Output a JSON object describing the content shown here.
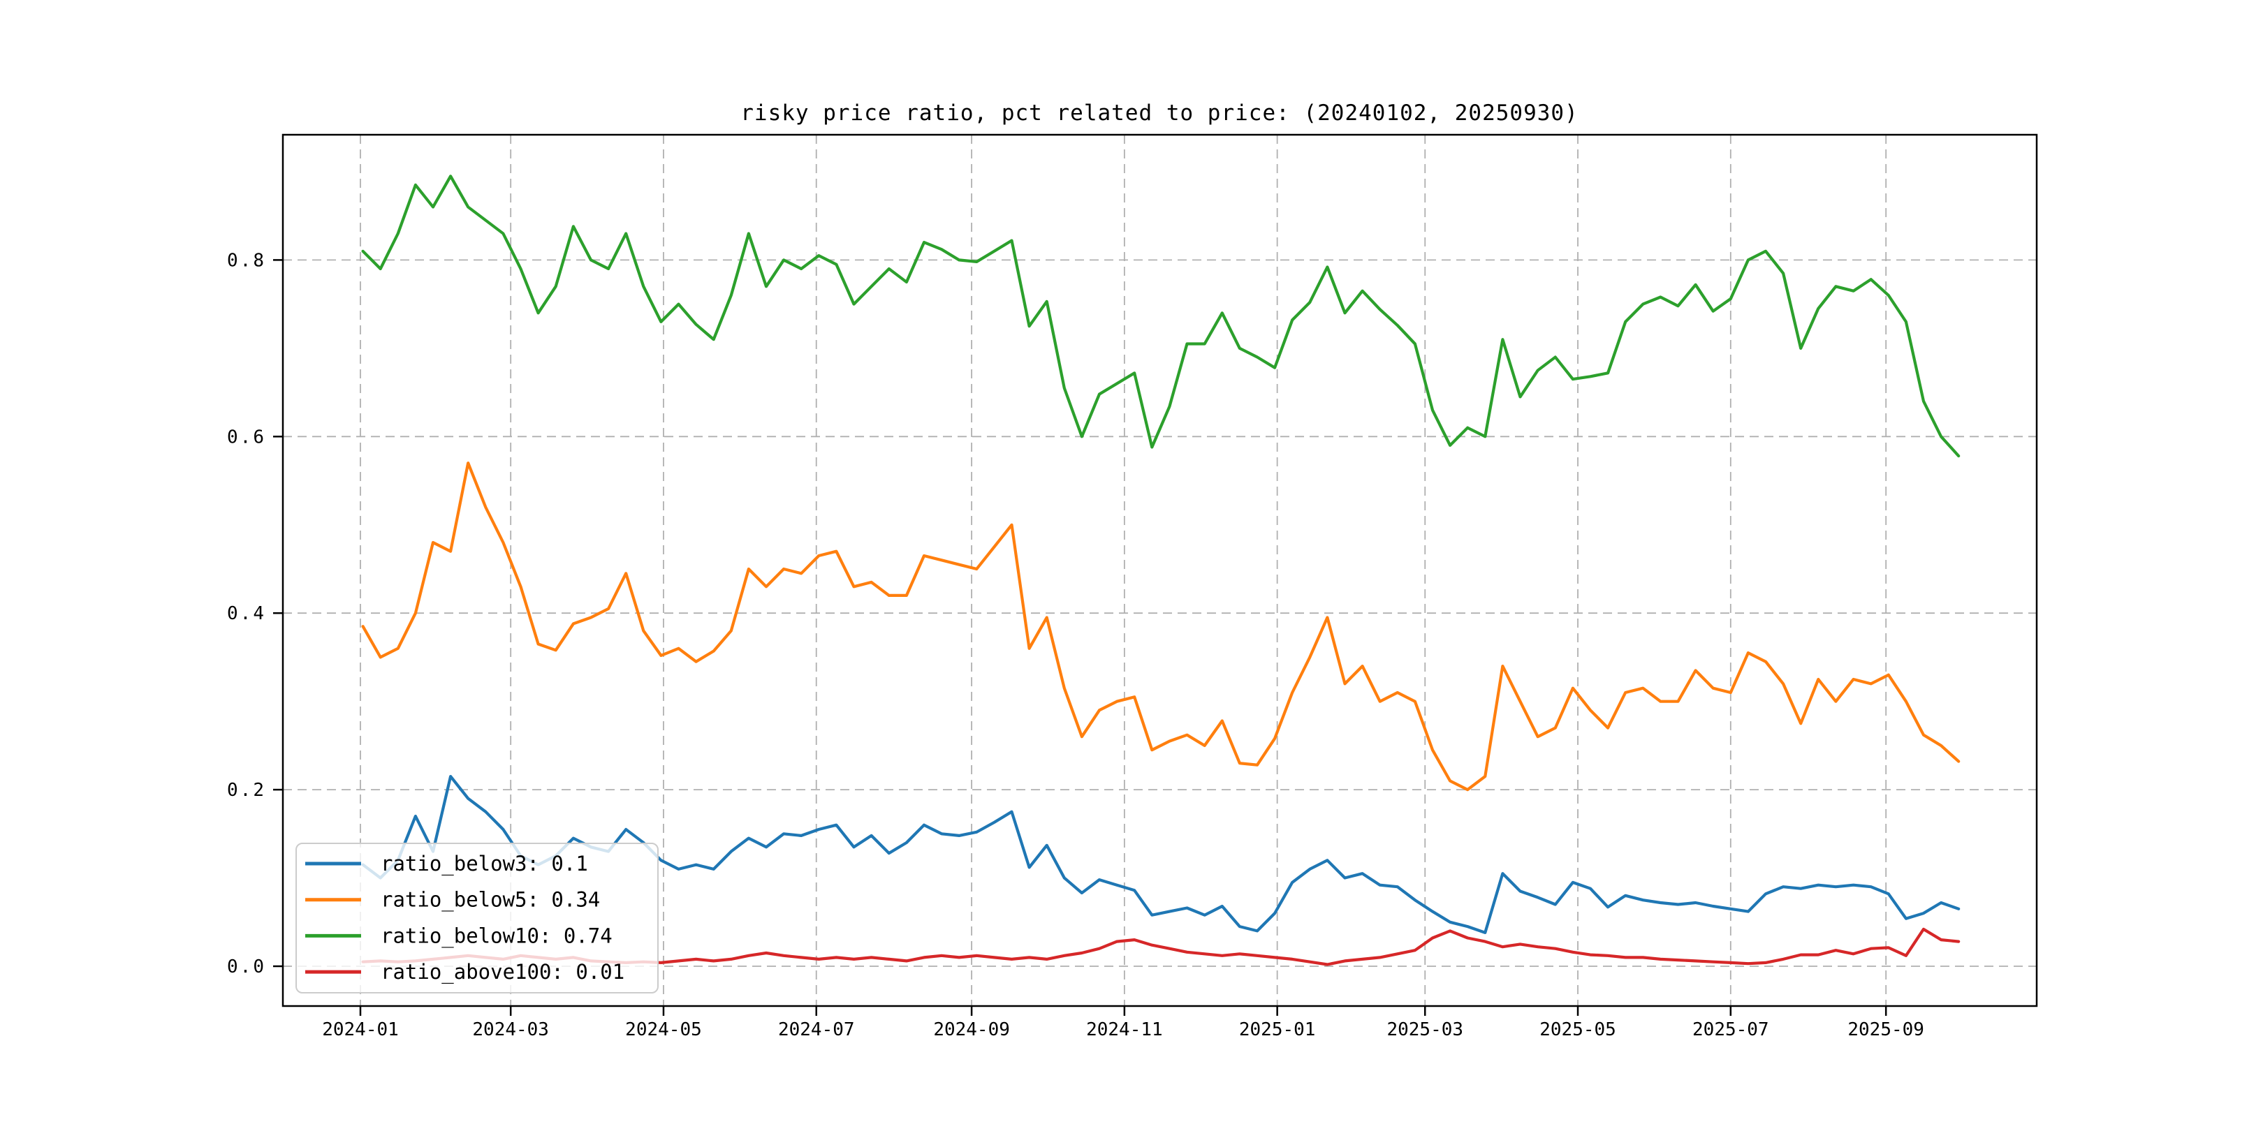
{
  "figure": {
    "background": "#ffffff",
    "grid_color": "#b0b0b0",
    "spine_color": "#000000",
    "legend_border_color": "#cccccc",
    "legend_background": "rgba(255,255,255,0.8)"
  },
  "chart_data": {
    "type": "line",
    "title": "risky price ratio, pct related to price: (20240102, 20250930)",
    "xlabel": "",
    "ylabel": "",
    "x_start_date": "2024-01-02",
    "x_end_date": "2025-09-30",
    "x_step_days": 7,
    "x_tick_labels": [
      "2024-01",
      "2024-03",
      "2024-05",
      "2024-07",
      "2024-09",
      "2024-11",
      "2025-01",
      "2025-03",
      "2025-05",
      "2025-07",
      "2025-09"
    ],
    "y_ticks": [
      0.0,
      0.2,
      0.4,
      0.6,
      0.8
    ],
    "ylim": [
      -0.045,
      0.942
    ],
    "grid": "dashed",
    "legend_position": "lower-left",
    "series": [
      {
        "name": "ratio_below3",
        "legend_label": "ratio_below3: 0.1",
        "color": "#1f77b4",
        "values": [
          0.115,
          0.1,
          0.12,
          0.17,
          0.13,
          0.215,
          0.19,
          0.175,
          0.155,
          0.125,
          0.115,
          0.125,
          0.145,
          0.135,
          0.13,
          0.155,
          0.14,
          0.12,
          0.11,
          0.115,
          0.11,
          0.13,
          0.145,
          0.135,
          0.15,
          0.148,
          0.155,
          0.16,
          0.135,
          0.148,
          0.128,
          0.14,
          0.16,
          0.15,
          0.148,
          0.152,
          0.163,
          0.175,
          0.112,
          0.137,
          0.1,
          0.083,
          0.098,
          0.092,
          0.086,
          0.058,
          0.062,
          0.066,
          0.058,
          0.068,
          0.045,
          0.04,
          0.06,
          0.095,
          0.11,
          0.12,
          0.1,
          0.105,
          0.092,
          0.09,
          0.075,
          0.062,
          0.05,
          0.045,
          0.038,
          0.105,
          0.085,
          0.078,
          0.07,
          0.095,
          0.088,
          0.067,
          0.08,
          0.075,
          0.072,
          0.07,
          0.072,
          0.068,
          0.065,
          0.062,
          0.082,
          0.09,
          0.088,
          0.092,
          0.09,
          0.092,
          0.09,
          0.082,
          0.054,
          0.06,
          0.072,
          0.065
        ]
      },
      {
        "name": "ratio_below5",
        "legend_label": "ratio_below5: 0.34",
        "color": "#ff7f0e",
        "values": [
          0.385,
          0.35,
          0.36,
          0.4,
          0.48,
          0.47,
          0.57,
          0.52,
          0.48,
          0.43,
          0.365,
          0.358,
          0.388,
          0.395,
          0.405,
          0.445,
          0.38,
          0.352,
          0.36,
          0.345,
          0.357,
          0.38,
          0.45,
          0.43,
          0.45,
          0.445,
          0.465,
          0.47,
          0.43,
          0.435,
          0.42,
          0.42,
          0.465,
          0.46,
          0.455,
          0.45,
          0.475,
          0.5,
          0.36,
          0.395,
          0.315,
          0.26,
          0.29,
          0.3,
          0.305,
          0.245,
          0.255,
          0.262,
          0.25,
          0.278,
          0.23,
          0.228,
          0.258,
          0.31,
          0.35,
          0.395,
          0.32,
          0.34,
          0.3,
          0.31,
          0.3,
          0.245,
          0.21,
          0.2,
          0.215,
          0.34,
          0.3,
          0.26,
          0.27,
          0.315,
          0.29,
          0.27,
          0.31,
          0.315,
          0.3,
          0.3,
          0.335,
          0.315,
          0.31,
          0.355,
          0.345,
          0.32,
          0.275,
          0.325,
          0.3,
          0.325,
          0.32,
          0.33,
          0.3,
          0.262,
          0.25,
          0.232
        ]
      },
      {
        "name": "ratio_below10",
        "legend_label": "ratio_below10: 0.74",
        "color": "#2ca02c",
        "values": [
          0.81,
          0.79,
          0.83,
          0.885,
          0.86,
          0.895,
          0.86,
          0.845,
          0.83,
          0.79,
          0.74,
          0.77,
          0.838,
          0.8,
          0.79,
          0.83,
          0.77,
          0.73,
          0.75,
          0.727,
          0.71,
          0.76,
          0.83,
          0.77,
          0.8,
          0.79,
          0.805,
          0.795,
          0.75,
          0.77,
          0.79,
          0.775,
          0.82,
          0.812,
          0.8,
          0.798,
          0.81,
          0.822,
          0.725,
          0.753,
          0.655,
          0.6,
          0.648,
          0.66,
          0.672,
          0.588,
          0.634,
          0.705,
          0.705,
          0.74,
          0.7,
          0.69,
          0.678,
          0.732,
          0.752,
          0.792,
          0.74,
          0.765,
          0.744,
          0.726,
          0.705,
          0.63,
          0.59,
          0.61,
          0.6,
          0.71,
          0.645,
          0.675,
          0.69,
          0.665,
          0.668,
          0.672,
          0.73,
          0.75,
          0.758,
          0.748,
          0.772,
          0.742,
          0.756,
          0.8,
          0.81,
          0.785,
          0.7,
          0.745,
          0.77,
          0.765,
          0.778,
          0.76,
          0.73,
          0.64,
          0.6,
          0.578
        ]
      },
      {
        "name": "ratio_above100",
        "legend_label": "ratio_above100: 0.01",
        "color": "#d62728",
        "values": [
          0.005,
          0.006,
          0.005,
          0.006,
          0.008,
          0.01,
          0.012,
          0.01,
          0.008,
          0.012,
          0.01,
          0.008,
          0.01,
          0.006,
          0.005,
          0.004,
          0.005,
          0.004,
          0.006,
          0.008,
          0.006,
          0.008,
          0.012,
          0.015,
          0.012,
          0.01,
          0.008,
          0.01,
          0.008,
          0.01,
          0.008,
          0.006,
          0.01,
          0.012,
          0.01,
          0.012,
          0.01,
          0.008,
          0.01,
          0.008,
          0.012,
          0.015,
          0.02,
          0.028,
          0.03,
          0.024,
          0.02,
          0.016,
          0.014,
          0.012,
          0.014,
          0.012,
          0.01,
          0.008,
          0.005,
          0.002,
          0.006,
          0.008,
          0.01,
          0.014,
          0.018,
          0.032,
          0.04,
          0.032,
          0.028,
          0.022,
          0.025,
          0.022,
          0.02,
          0.016,
          0.013,
          0.012,
          0.01,
          0.01,
          0.008,
          0.007,
          0.006,
          0.005,
          0.004,
          0.003,
          0.004,
          0.008,
          0.013,
          0.013,
          0.018,
          0.014,
          0.02,
          0.021,
          0.012,
          0.042,
          0.03,
          0.028
        ]
      }
    ]
  }
}
